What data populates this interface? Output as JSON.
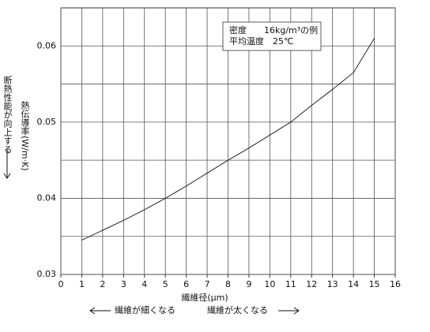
{
  "chart_data": {
    "type": "line",
    "xlabel": "繊維径(μm)",
    "ylabel": "熱伝導率(W/m·K)",
    "ylabel_note": "断熱性能が向上する",
    "note_lines": [
      "密度　　16kg/m³の例",
      "平均温度　25℃"
    ],
    "left_note": "繊維が細くなる",
    "right_note": "繊維が太くなる",
    "x": [
      1,
      2,
      3,
      4,
      5,
      6,
      7,
      8,
      9,
      10,
      11,
      12,
      13,
      14,
      15
    ],
    "series": [
      {
        "color": "#222222",
        "values": [
          0.0345,
          0.0358,
          0.0371,
          0.0385,
          0.04,
          0.0416,
          0.0433,
          0.045,
          0.0466,
          0.0483,
          0.05,
          0.0522,
          0.0543,
          0.0565,
          0.061
        ]
      }
    ],
    "xlim": [
      0,
      16
    ],
    "xticks": [
      0,
      1,
      2,
      3,
      4,
      5,
      6,
      7,
      8,
      9,
      10,
      11,
      12,
      13,
      14,
      15,
      16
    ],
    "ylim": [
      0.03,
      0.065
    ],
    "yticks": [
      0.03,
      0.04,
      0.05,
      0.06
    ],
    "yminor": [
      0.035,
      0.045,
      0.055
    ],
    "grid": true
  }
}
